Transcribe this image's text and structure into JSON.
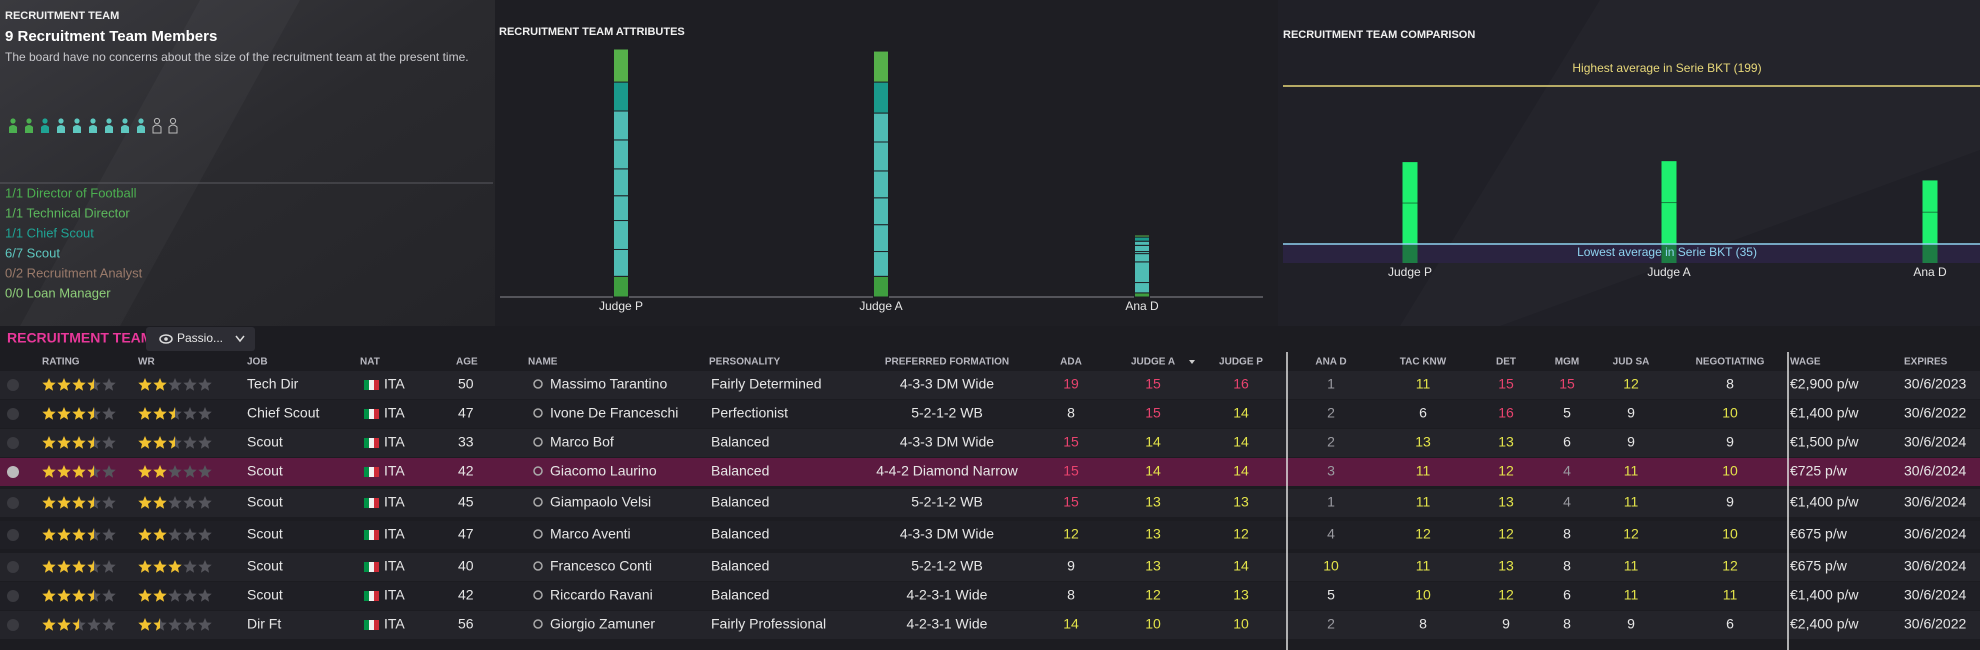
{
  "left_panel": {
    "section_label": "RECRUITMENT TEAM",
    "title": "9 Recruitment Team Members",
    "description": "The board have no concerns about the size of the recruitment team at the present time.",
    "roles": [
      {
        "label": "1/1 Director of Football",
        "color": "#4caf50"
      },
      {
        "label": "1/1 Technical Director",
        "color": "#5cb85c"
      },
      {
        "label": "1/1 Chief Scout",
        "color": "#1fa394"
      },
      {
        "label": "6/7 Scout",
        "color": "#5ec8c0"
      },
      {
        "label": "0/2 Recruitment Analyst",
        "color": "#9a7a6a"
      },
      {
        "label": "0/0 Loan Manager",
        "color": "#8fcf7a"
      }
    ]
  },
  "attributes_chart": {
    "type": "stacked_bar",
    "title": "RECRUITMENT TEAM ATTRIBUTES",
    "categories": [
      "Judge P",
      "Judge A",
      "Ana D"
    ]
  },
  "comparison_chart": {
    "type": "bar",
    "title": "RECRUITMENT TEAM COMPARISON",
    "categories": [
      "Judge P",
      "Judge A",
      "Ana D"
    ],
    "values": [
      120,
      121,
      101
    ],
    "color": "#1ef06e",
    "reference_lines": [
      {
        "label": "Highest average in Serie BKT (199)",
        "value": 199,
        "color": "#e8d87a"
      },
      {
        "label": "Lowest average in Serie BKT (35)",
        "value": 35,
        "color": "#8fd3f0"
      }
    ]
  },
  "team_section": {
    "label": "RECRUITMENT TEAM",
    "view_button": "Passio..."
  },
  "table": {
    "columns": [
      "RATING",
      "WR",
      "JOB",
      "NAT",
      "AGE",
      "NAME",
      "PERSONALITY",
      "PREFERRED FORMATION",
      "ADA",
      "JUDGE A",
      "JUDGE P",
      "ANA D",
      "TAC KNW",
      "DET",
      "MGM",
      "JUD SA",
      "NEGOTIATING",
      "WAGE",
      "EXPIRES"
    ],
    "sort_column": 9,
    "selected_row": 3,
    "rows": [
      {
        "rating": 3.5,
        "wr": 2,
        "job": "Tech Dir",
        "nat": "ITA",
        "age": 50,
        "name": "Massimo Tarantino",
        "personality": "Fairly Determined",
        "formation": "4-3-3 DM Wide",
        "attributes": [
          19,
          15,
          16,
          1,
          11,
          15,
          15,
          12,
          8
        ],
        "wage": "€2,900 p/w",
        "expires": "30/6/2023",
        "color": "#56b04a"
      },
      {
        "rating": 3.5,
        "wr": 2.5,
        "job": "Chief Scout",
        "nat": "ITA",
        "age": 47,
        "name": "Ivone De Franceschi",
        "personality": "Perfectionist",
        "formation": "5-2-1-2 WB",
        "attributes": [
          8,
          15,
          14,
          2,
          6,
          16,
          5,
          9,
          10
        ],
        "wage": "€1,400 p/w",
        "expires": "30/6/2022",
        "color": "#1a9a8c"
      },
      {
        "rating": 3.5,
        "wr": 2.5,
        "job": "Scout",
        "nat": "ITA",
        "age": 33,
        "name": "Marco Bof",
        "personality": "Balanced",
        "formation": "4-3-3 DM Wide",
        "attributes": [
          15,
          14,
          14,
          2,
          13,
          13,
          6,
          9,
          9
        ],
        "wage": "€1,500 p/w",
        "expires": "30/6/2024",
        "color": "#4fbcb4"
      },
      {
        "rating": 3.5,
        "wr": 2,
        "job": "Scout",
        "nat": "ITA",
        "age": 42,
        "name": "Giacomo Laurino",
        "personality": "Balanced",
        "formation": "4-4-2 Diamond Narrow",
        "attributes": [
          15,
          14,
          14,
          3,
          11,
          12,
          4,
          11,
          10
        ],
        "wage": "€725 p/w",
        "expires": "30/6/2024",
        "color": "#4fbcb4"
      },
      {
        "rating": 3.5,
        "wr": 2,
        "job": "Scout",
        "nat": "ITA",
        "age": 45,
        "name": "Giampaolo Velsi",
        "personality": "Balanced",
        "formation": "5-2-1-2 WB",
        "attributes": [
          15,
          13,
          13,
          1,
          11,
          13,
          4,
          11,
          9
        ],
        "wage": "€1,400 p/w",
        "expires": "30/6/2024",
        "color": "#4fbcb4"
      },
      {
        "rating": 3.5,
        "wr": 2,
        "job": "Scout",
        "nat": "ITA",
        "age": 47,
        "name": "Marco Aventi",
        "personality": "Balanced",
        "formation": "4-3-3 DM Wide",
        "attributes": [
          12,
          13,
          12,
          4,
          12,
          12,
          8,
          12,
          10
        ],
        "wage": "€675 p/w",
        "expires": "30/6/2024",
        "color": "#4fbcb4"
      },
      {
        "rating": 3.5,
        "wr": 3,
        "job": "Scout",
        "nat": "ITA",
        "age": 40,
        "name": "Francesco Conti",
        "personality": "Balanced",
        "formation": "5-2-1-2 WB",
        "attributes": [
          9,
          13,
          14,
          10,
          11,
          13,
          8,
          11,
          12
        ],
        "wage": "€675 p/w",
        "expires": "30/6/2024",
        "color": "#4fbcb4"
      },
      {
        "rating": 3.5,
        "wr": 2,
        "job": "Scout",
        "nat": "ITA",
        "age": 42,
        "name": "Riccardo Ravani",
        "personality": "Balanced",
        "formation": "4-2-3-1 Wide",
        "attributes": [
          8,
          12,
          13,
          5,
          10,
          12,
          6,
          11,
          11
        ],
        "wage": "€1,400 p/w",
        "expires": "30/6/2024",
        "color": "#4fbcb4"
      },
      {
        "rating": 2.5,
        "wr": 1.5,
        "job": "Dir Ft",
        "nat": "ITA",
        "age": 56,
        "name": "Giorgio Zamuner",
        "personality": "Fairly Professional",
        "formation": "4-2-3-1 Wide",
        "attributes": [
          14,
          10,
          10,
          2,
          8,
          9,
          8,
          9,
          6
        ],
        "wage": "€2,400 p/w",
        "expires": "30/6/2022",
        "color": "#3f9e3f"
      }
    ]
  }
}
